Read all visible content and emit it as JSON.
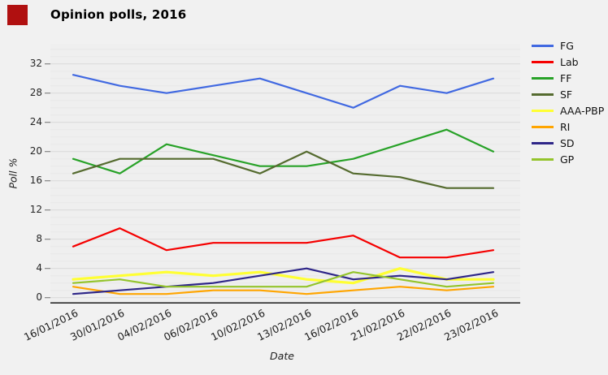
{
  "title": "Opinion polls, 2016",
  "click_marker_color": "#b01010",
  "chart_data": {
    "type": "line",
    "title": "Opinion polls, 2016",
    "xlabel": "Date",
    "ylabel": "Poll %",
    "categories": [
      "16/01/2016",
      "30/01/2016",
      "04/02/2016",
      "06/02/2016",
      "10/02/2016",
      "13/02/2016",
      "16/02/2016",
      "21/02/2016",
      "22/02/2016",
      "23/02/2016"
    ],
    "ylim": [
      0,
      34
    ],
    "yticks": [
      0,
      4,
      8,
      12,
      16,
      20,
      24,
      28,
      32
    ],
    "grid": "horizontal only, minor gridline every 1 unit, major every 4",
    "legend_position": "right",
    "series": [
      {
        "name": "FG",
        "color": "#4169e1",
        "line_width": 2.2,
        "values": [
          30.5,
          29,
          28,
          29,
          30,
          28,
          26,
          29,
          28,
          30
        ]
      },
      {
        "name": "Lab",
        "color": "#f50000",
        "line_width": 2.2,
        "values": [
          7,
          9.5,
          6.5,
          7.5,
          7.5,
          7.5,
          8.5,
          5.5,
          5.5,
          6.5
        ]
      },
      {
        "name": "FF",
        "color": "#28a228",
        "line_width": 2.2,
        "values": [
          19,
          17,
          21,
          19.5,
          18,
          18,
          19,
          21,
          23,
          20
        ]
      },
      {
        "name": "SF",
        "color": "#556b2f",
        "line_width": 2.2,
        "values": [
          17,
          19,
          19,
          19,
          17,
          20,
          17,
          16.5,
          15,
          15
        ]
      },
      {
        "name": "AAA-PBP",
        "color": "#ffff33",
        "line_width": 3.2,
        "values": [
          2.5,
          3,
          3.5,
          3,
          3.5,
          2.5,
          2,
          4,
          2.5,
          2.5
        ]
      },
      {
        "name": "RI",
        "color": "#ffa500",
        "line_width": 2.2,
        "values": [
          1.5,
          0.5,
          0.5,
          1,
          1,
          0.5,
          1,
          1.5,
          1,
          1.5
        ]
      },
      {
        "name": "SD",
        "color": "#2e2688",
        "line_width": 2.2,
        "values": [
          0.5,
          1,
          1.5,
          2,
          3,
          4,
          2.5,
          3,
          2.5,
          3.5
        ]
      },
      {
        "name": "GP",
        "color": "#94c42c",
        "line_width": 2.2,
        "values": [
          2,
          2.5,
          1.5,
          1.5,
          1.5,
          1.5,
          3.5,
          2.5,
          1.5,
          2
        ]
      }
    ]
  }
}
